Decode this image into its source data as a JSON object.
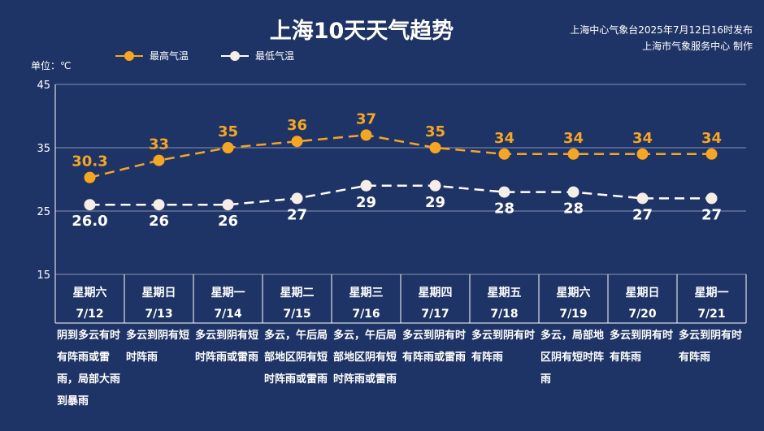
{
  "header": {
    "title": "上海10天天气趋势",
    "publish_line1": "上海中心气象台2025年7月12日16时发布",
    "publish_line2": "上海市气象服务中心 制作",
    "unit": "单位：℃"
  },
  "legend": {
    "high": "最高气温",
    "low": "最低气温"
  },
  "colors": {
    "background": "#1f3466",
    "high": "#f5a623",
    "low": "#ffffff",
    "grid": "#c9d1e6"
  },
  "chart_data": {
    "type": "line",
    "categories": [
      "7/12",
      "7/13",
      "7/14",
      "7/15",
      "7/16",
      "7/17",
      "7/18",
      "7/19",
      "7/20",
      "7/21"
    ],
    "weekdays": [
      "星期六",
      "星期日",
      "星期一",
      "星期二",
      "星期三",
      "星期四",
      "星期五",
      "星期六",
      "星期日",
      "星期一"
    ],
    "series": [
      {
        "name": "最高气温",
        "values": [
          30.3,
          33,
          35,
          36,
          37,
          35,
          34,
          34,
          34,
          34
        ],
        "labels": [
          "30.3",
          "33",
          "35",
          "36",
          "37",
          "35",
          "34",
          "34",
          "34",
          "34"
        ]
      },
      {
        "name": "最低气温",
        "values": [
          26.0,
          26,
          26,
          27,
          29,
          29,
          28,
          28,
          27,
          27
        ],
        "labels": [
          "26.0",
          "26",
          "26",
          "27",
          "29",
          "29",
          "28",
          "28",
          "27",
          "27"
        ]
      }
    ],
    "ylim": [
      15,
      45
    ],
    "yticks": [
      15,
      25,
      35,
      45
    ]
  },
  "weather": [
    "阴到多云有时有阵雨或雷雨，局部大雨到暴雨",
    "多云到阴有短时阵雨",
    "多云到阴有短时阵雨或雷雨",
    "多云，午后局部地区阴有短时阵雨或雷雨",
    "多云，午后局部地区阴有短时阵雨或雷雨",
    "多云到阴有时有阵雨或雷雨",
    "多云到阴有时有阵雨",
    "多云，局部地区阴有短时阵雨",
    "多云到阴有时有阵雨",
    "多云到阴有时有阵雨"
  ]
}
